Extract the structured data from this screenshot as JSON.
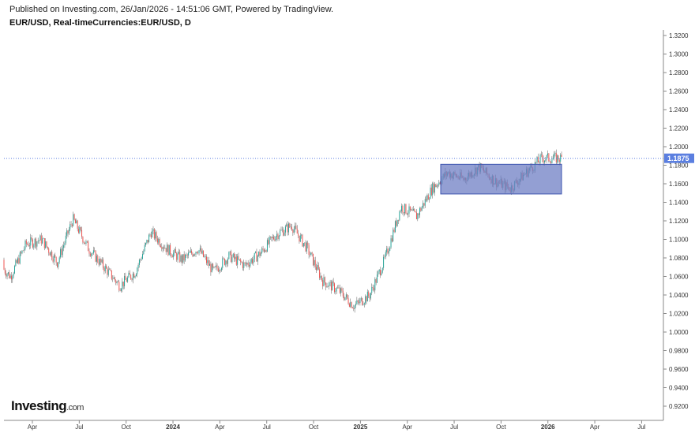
{
  "header": {
    "published": "Published on Investing.com, 26/Jan/2026 - 14:51:06 GMT, Powered by TradingView.",
    "symbol": "EUR/USD, Real-timeCurrencies:EUR/USD, D"
  },
  "logo": {
    "main": "Investing",
    "suffix": ".com"
  },
  "chart_data": {
    "type": "candlestick",
    "interval": "D",
    "ylim": [
      0.91,
      1.325
    ],
    "y_ticks": [
      "1.3200",
      "1.3000",
      "1.2800",
      "1.2600",
      "1.2400",
      "1.2200",
      "1.2000",
      "1.1800",
      "1.1600",
      "1.1400",
      "1.1200",
      "1.1000",
      "1.0800",
      "1.0600",
      "1.0400",
      "1.0200",
      "1.0000",
      "0.9800",
      "0.9600",
      "0.9400",
      "0.9200"
    ],
    "x_ticks": [
      "Apr",
      "Jul",
      "Oct",
      "2024",
      "Apr",
      "Jul",
      "Oct",
      "2025",
      "Apr",
      "Jul",
      "Oct",
      "2026",
      "Apr",
      "Jul"
    ],
    "last_price": "1.1875",
    "approx_monthly_close": [
      [
        "2023-02",
        1.078
      ],
      [
        "2023-03",
        1.06
      ],
      [
        "2023-04",
        1.095
      ],
      [
        "2023-05",
        1.1
      ],
      [
        "2023-06",
        1.075
      ],
      [
        "2023-07",
        1.122
      ],
      [
        "2023-08",
        1.09
      ],
      [
        "2023-09",
        1.07
      ],
      [
        "2023-10",
        1.05
      ],
      [
        "2023-11",
        1.065
      ],
      [
        "2023-12",
        1.108
      ],
      [
        "2024-01",
        1.09
      ],
      [
        "2024-02",
        1.078
      ],
      [
        "2024-03",
        1.09
      ],
      [
        "2024-04",
        1.065
      ],
      [
        "2024-05",
        1.082
      ],
      [
        "2024-06",
        1.072
      ],
      [
        "2024-07",
        1.085
      ],
      [
        "2024-08",
        1.105
      ],
      [
        "2024-09",
        1.115
      ],
      [
        "2024-10",
        1.09
      ],
      [
        "2024-11",
        1.055
      ],
      [
        "2024-12",
        1.045
      ],
      [
        "2025-01",
        1.028
      ],
      [
        "2025-02",
        1.04
      ],
      [
        "2025-03",
        1.08
      ],
      [
        "2025-04",
        1.135
      ],
      [
        "2025-05",
        1.125
      ],
      [
        "2025-06",
        1.155
      ],
      [
        "2025-07",
        1.172
      ],
      [
        "2025-08",
        1.165
      ],
      [
        "2025-09",
        1.178
      ],
      [
        "2025-10",
        1.163
      ],
      [
        "2025-11",
        1.155
      ],
      [
        "2025-12",
        1.172
      ],
      [
        "2026-01",
        1.1875
      ]
    ],
    "range_box": {
      "from": "2025-06",
      "to": "2026-01",
      "top": 1.181,
      "bottom": 1.149,
      "color": "#6f7fc4"
    },
    "colors": {
      "up": "#26a69a",
      "down": "#ef5350",
      "last_price_label": "#5b7fe0",
      "grid_axis": "#888888"
    }
  }
}
